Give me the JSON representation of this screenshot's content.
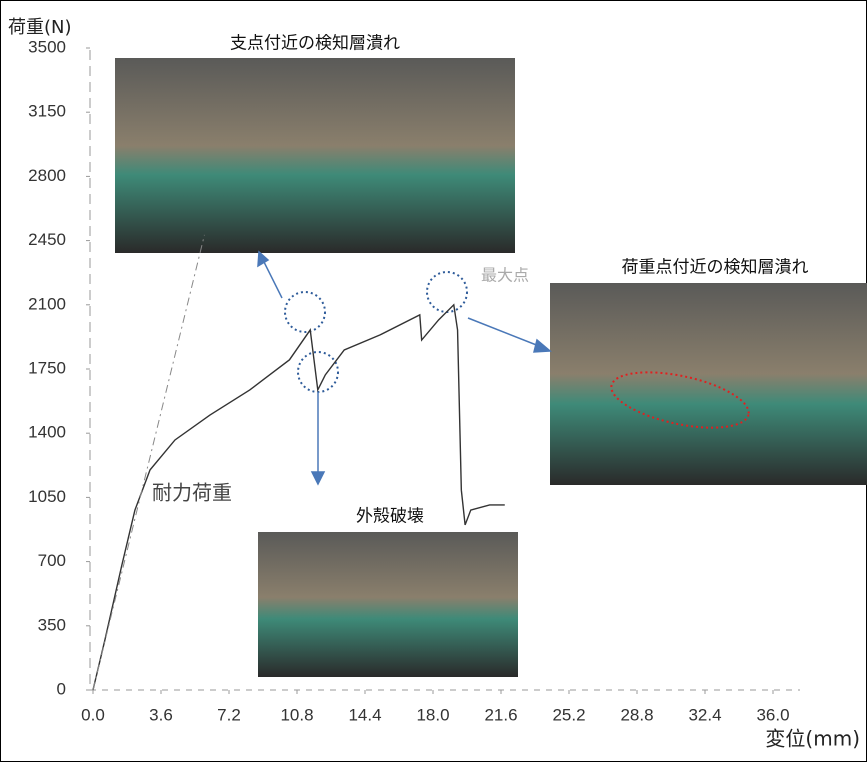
{
  "chart_data": {
    "type": "line",
    "ylabel": "荷重(N)",
    "xlabel": "変位(mm)",
    "xlim": [
      0,
      36
    ],
    "ylim": [
      0,
      3500
    ],
    "xticks": [
      {
        "value": 0,
        "label": "0.0"
      },
      3.6,
      7.2,
      10.8,
      14.4,
      {
        "value": 18,
        "label": "18.0"
      },
      21.6,
      25.2,
      28.8,
      32.4,
      {
        "value": 36,
        "label": "36.0"
      }
    ],
    "yticks": [
      0,
      350,
      700,
      1050,
      1400,
      1750,
      2100,
      2450,
      2800,
      3150,
      3500
    ],
    "series": [
      {
        "color": "#333333",
        "x": [
          0,
          0.63,
          1.53,
          2.22,
          3.02,
          4.34,
          6.19,
          8.3,
          10.4,
          11.5,
          11.7,
          11.9,
          12.3,
          13.3,
          15.2,
          17.3,
          17.4,
          18.3,
          19.1,
          19.3,
          19.5,
          19.7,
          20.0,
          21.0,
          21.8
        ],
        "values": [
          0,
          273,
          682,
          981,
          1200,
          1363,
          1499,
          1636,
          1800,
          1963,
          1800,
          1636,
          1718,
          1854,
          1936,
          2045,
          1908,
          2018,
          2100,
          1963,
          1090,
          900,
          981,
          1009,
          1009
        ]
      },
      {
        "color": "#888888",
        "x": [
          0,
          5.9
        ],
        "values": [
          0,
          2481
        ]
      }
    ],
    "annotations": [
      "支点付近の検知層潰れ",
      "荷重点付近の検知層潰れ",
      "外殻破壊",
      "耐力荷重",
      "最大点"
    ]
  }
}
